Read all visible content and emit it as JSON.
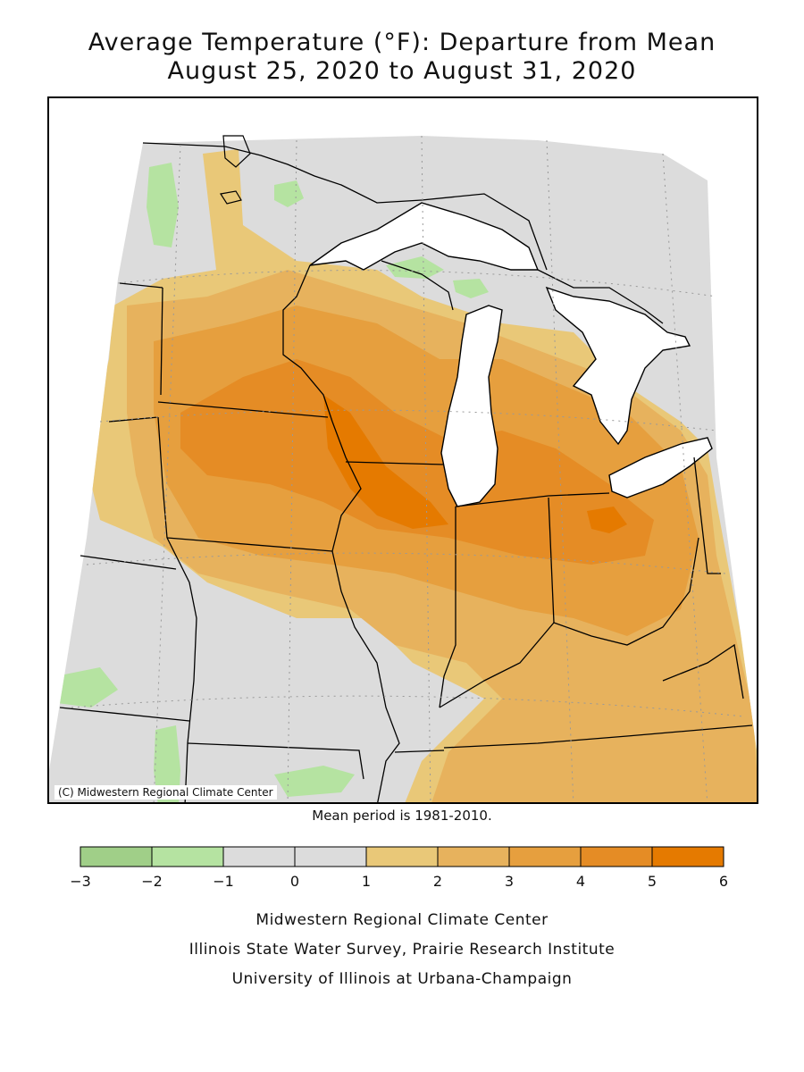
{
  "title": {
    "line1": "Average Temperature (°F): Departure from Mean",
    "line2": "August 25, 2020 to August 31, 2020"
  },
  "map": {
    "copyright": "(C) Midwestern Regional Climate Center",
    "mean_period_note": "Mean period is 1981-2010."
  },
  "legend": {
    "ticks": [
      "-3",
      "-2",
      "-1",
      "0",
      "1",
      "2",
      "3",
      "4",
      "5",
      "6"
    ],
    "bins": [
      {
        "range": "-3 to -2",
        "color": "#a0cf88"
      },
      {
        "range": "-2 to -1",
        "color": "#b5e3a1"
      },
      {
        "range": "-1 to 0",
        "color": "#dcdcdc"
      },
      {
        "range": "0 to 1",
        "color": "#dcdcdc"
      },
      {
        "range": "1 to 2",
        "color": "#e9c878"
      },
      {
        "range": "2 to 3",
        "color": "#e7b25d"
      },
      {
        "range": "3 to 4",
        "color": "#e69f3e"
      },
      {
        "range": "4 to 5",
        "color": "#e58c25"
      },
      {
        "range": "5 to 6",
        "color": "#e57a00"
      }
    ]
  },
  "credits": {
    "line1": "Midwestern Regional Climate Center",
    "line2": "Illinois State Water Survey, Prairie Research Institute",
    "line3": "University of Illinois at Urbana-Champaign"
  }
}
